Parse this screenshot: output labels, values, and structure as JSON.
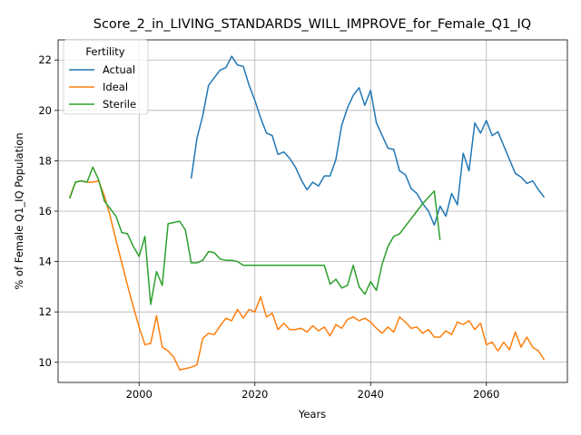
{
  "chart_data": {
    "type": "line",
    "title": "Score_2_in_LIVING_STANDARDS_WILL_IMPROVE_for_Female_Q1_IQ",
    "xlabel": "Years",
    "ylabel": "% of Female Q1_IQ Population",
    "xlim": [
      1986,
      2074
    ],
    "ylim": [
      9.2,
      22.8
    ],
    "xticks": [
      2000,
      2020,
      2040,
      2060
    ],
    "yticks": [
      10,
      12,
      14,
      16,
      18,
      20,
      22
    ],
    "grid": true,
    "legend": {
      "title": "Fertility",
      "placement": "top-left"
    },
    "series": [
      {
        "name": "Actual",
        "color": "#1f77b4",
        "x": [
          2009,
          2010,
          2011,
          2012,
          2013,
          2014,
          2015,
          2016,
          2017,
          2018,
          2019,
          2020,
          2021,
          2022,
          2023,
          2024,
          2025,
          2026,
          2027,
          2028,
          2029,
          2030,
          2031,
          2032,
          2033,
          2034,
          2035,
          2036,
          2037,
          2038,
          2039,
          2040,
          2041,
          2042,
          2043,
          2044,
          2045,
          2046,
          2047,
          2048,
          2049,
          2050,
          2051,
          2052,
          2053,
          2054,
          2055,
          2056,
          2057,
          2058,
          2059,
          2060,
          2061,
          2062,
          2063,
          2064,
          2065,
          2066,
          2067,
          2068,
          2069,
          2070
        ],
        "y": [
          17.3,
          18.9,
          19.8,
          21.0,
          21.3,
          21.6,
          21.7,
          22.15,
          21.8,
          21.75,
          21.0,
          20.4,
          19.7,
          19.1,
          19.0,
          18.25,
          18.35,
          18.1,
          17.75,
          17.25,
          16.85,
          17.15,
          17.0,
          17.4,
          17.4,
          18.05,
          19.4,
          20.1,
          20.6,
          20.9,
          20.2,
          20.8,
          19.5,
          19.0,
          18.5,
          18.45,
          17.6,
          17.45,
          16.9,
          16.7,
          16.3,
          16.0,
          15.45,
          16.2,
          15.8,
          16.7,
          16.25,
          18.3,
          17.6,
          19.5,
          19.1,
          19.6,
          19.0,
          19.15,
          18.6,
          18.05,
          17.5,
          17.35,
          17.1,
          17.2,
          16.85,
          16.55
        ]
      },
      {
        "name": "Ideal",
        "color": "#ff7f0e",
        "x": [
          1988,
          1989,
          1990,
          1991,
          1992,
          1993,
          1994,
          1995,
          1996,
          1997,
          1998,
          1999,
          2000,
          2001,
          2002,
          2003,
          2004,
          2005,
          2006,
          2007,
          2008,
          2009,
          2010,
          2011,
          2012,
          2013,
          2014,
          2015,
          2016,
          2017,
          2018,
          2019,
          2020,
          2021,
          2022,
          2023,
          2024,
          2025,
          2026,
          2027,
          2028,
          2029,
          2030,
          2031,
          2032,
          2033,
          2034,
          2035,
          2036,
          2037,
          2038,
          2039,
          2040,
          2041,
          2042,
          2043,
          2044,
          2045,
          2046,
          2047,
          2048,
          2049,
          2050,
          2051,
          2052,
          2053,
          2054,
          2055,
          2056,
          2057,
          2058,
          2059,
          2060,
          2061,
          2062,
          2063,
          2064,
          2065,
          2066,
          2067,
          2068,
          2069,
          2070
        ],
        "y": [
          16.55,
          17.15,
          17.2,
          17.15,
          17.15,
          17.2,
          16.6,
          15.8,
          14.85,
          13.95,
          13.05,
          12.2,
          11.4,
          10.7,
          10.75,
          11.85,
          10.6,
          10.45,
          10.2,
          9.7,
          9.75,
          9.8,
          9.9,
          10.95,
          11.15,
          11.1,
          11.45,
          11.75,
          11.65,
          12.1,
          11.75,
          12.1,
          12.0,
          12.6,
          11.8,
          11.95,
          11.3,
          11.55,
          11.3,
          11.3,
          11.35,
          11.2,
          11.45,
          11.25,
          11.4,
          11.05,
          11.5,
          11.35,
          11.7,
          11.8,
          11.65,
          11.75,
          11.6,
          11.35,
          11.15,
          11.4,
          11.2,
          11.8,
          11.6,
          11.35,
          11.4,
          11.15,
          11.3,
          11.0,
          11.0,
          11.25,
          11.1,
          11.6,
          11.5,
          11.65,
          11.3,
          11.55,
          10.7,
          10.8,
          10.45,
          10.8,
          10.5,
          11.2,
          10.6,
          11.0,
          10.6,
          10.45,
          10.1
        ]
      },
      {
        "name": "Sterile",
        "color": "#2ca02c",
        "x": [
          1988,
          1989,
          1990,
          1991,
          1992,
          1993,
          1994,
          1995,
          1996,
          1997,
          1998,
          1999,
          2000,
          2001,
          2002,
          2003,
          2004,
          2005,
          2006,
          2007,
          2008,
          2009,
          2010,
          2011,
          2012,
          2013,
          2014,
          2015,
          2016,
          2017,
          2018,
          2019,
          2020,
          2021,
          2022,
          2023,
          2024,
          2025,
          2026,
          2027,
          2028,
          2029,
          2030,
          2031,
          2032,
          2033,
          2034,
          2035,
          2036,
          2037,
          2038,
          2039,
          2040,
          2041,
          2042,
          2043,
          2044,
          2045,
          2046,
          2047,
          2048,
          2049,
          2050,
          2051,
          2052
        ],
        "y": [
          16.5,
          17.15,
          17.2,
          17.15,
          17.75,
          17.25,
          16.4,
          16.1,
          15.8,
          15.15,
          15.1,
          14.6,
          14.2,
          15.0,
          12.3,
          13.6,
          13.05,
          15.5,
          15.55,
          15.6,
          15.25,
          13.95,
          13.95,
          14.05,
          14.4,
          14.35,
          14.1,
          14.05,
          14.05,
          14.0,
          13.85,
          13.85,
          13.85,
          13.85,
          13.85,
          13.85,
          13.85,
          13.85,
          13.85,
          13.85,
          13.85,
          13.85,
          13.85,
          13.85,
          13.85,
          13.1,
          13.3,
          12.95,
          13.05,
          13.85,
          13.0,
          12.7,
          13.2,
          12.85,
          13.9,
          14.6,
          15.0,
          15.1,
          15.4,
          15.7,
          16.0,
          16.3,
          16.55,
          16.8,
          14.85
        ]
      }
    ]
  }
}
